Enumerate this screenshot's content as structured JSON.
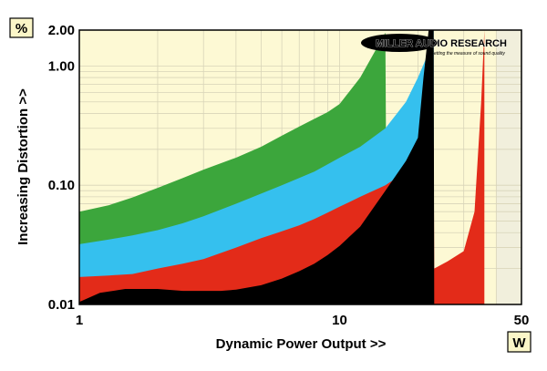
{
  "chart_data": {
    "type": "area",
    "title": "",
    "xlabel": "Dynamic Power Output >>",
    "ylabel": "Increasing Distortion >>",
    "x_scale": "log",
    "y_scale": "log",
    "xlim": [
      1,
      50
    ],
    "ylim": [
      0.01,
      2.0
    ],
    "x_tick_labels": [
      "1",
      "10",
      "50"
    ],
    "y_tick_labels": [
      "0.01",
      "0.10",
      "1.00",
      "2.00"
    ],
    "x_unit": "W",
    "y_unit": "%",
    "grid": true,
    "colors": {
      "plot_background": "#fdf9d4",
      "band_background": "#f1efdc",
      "grid": "#d8d4b8",
      "green": "#3ca63c",
      "blue": "#35c0ee",
      "red": "#e32b19",
      "black": "#000000"
    },
    "series": [
      {
        "color": "green",
        "x": [
          1,
          1.3,
          1.6,
          2,
          2.5,
          3,
          4,
          5,
          6,
          7,
          8,
          9,
          10,
          12,
          15,
          15.1
        ],
        "values": [
          0.06,
          0.068,
          0.079,
          0.095,
          0.115,
          0.135,
          0.17,
          0.21,
          0.26,
          0.31,
          0.36,
          0.41,
          0.48,
          0.8,
          1.9,
          0.13
        ]
      },
      {
        "color": "blue",
        "x": [
          1,
          1.3,
          1.6,
          2,
          2.5,
          3,
          4,
          5,
          6,
          7,
          8,
          9,
          10,
          12,
          15,
          18,
          20,
          22,
          23
        ],
        "values": [
          0.032,
          0.035,
          0.038,
          0.042,
          0.048,
          0.055,
          0.07,
          0.085,
          0.1,
          0.115,
          0.13,
          0.15,
          0.17,
          0.21,
          0.3,
          0.5,
          0.8,
          1.3,
          2.0
        ]
      },
      {
        "color": "red",
        "x": [
          1,
          1.3,
          1.6,
          2,
          2.5,
          3,
          4,
          5,
          6,
          7,
          8,
          9,
          10,
          12,
          15,
          18,
          20,
          23,
          23.1,
          26,
          30,
          33,
          35,
          36
        ],
        "values": [
          0.017,
          0.0175,
          0.018,
          0.02,
          0.022,
          0.024,
          0.03,
          0.036,
          0.041,
          0.046,
          0.052,
          0.059,
          0.066,
          0.08,
          0.1,
          0.13,
          0.16,
          0.22,
          0.02,
          0.023,
          0.028,
          0.06,
          0.5,
          2.0
        ]
      },
      {
        "color": "black",
        "x": [
          1,
          1.2,
          1.5,
          2,
          2.5,
          3,
          3.5,
          4,
          5,
          6,
          7,
          8,
          9,
          10,
          12,
          15,
          18,
          20,
          21,
          22,
          23,
          23.1
        ],
        "values": [
          0.0105,
          0.0125,
          0.0135,
          0.0135,
          0.013,
          0.013,
          0.013,
          0.0133,
          0.0145,
          0.0165,
          0.019,
          0.022,
          0.026,
          0.031,
          0.045,
          0.09,
          0.16,
          0.25,
          0.8,
          2.0,
          2.0,
          0.01
        ]
      }
    ],
    "logo": {
      "text": "MILLER AUDIO RESEARCH",
      "tagline": "Getting the measure of sound quality"
    }
  }
}
